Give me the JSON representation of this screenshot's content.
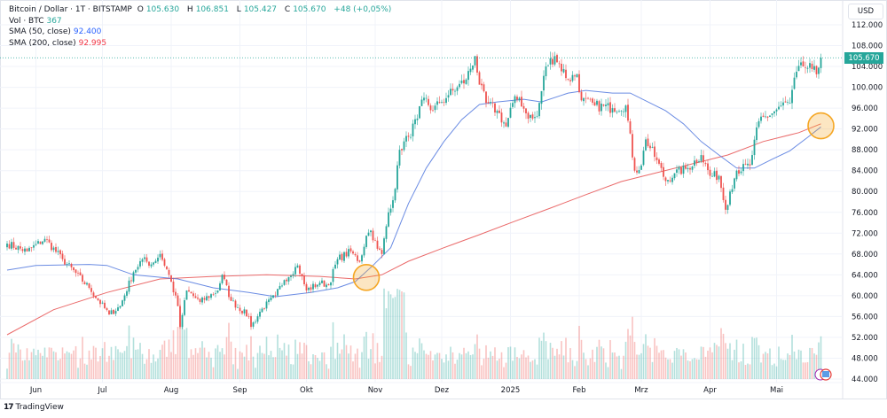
{
  "legend": {
    "symbol": "Bitcoin / Dollar · 1T · BITSTAMP",
    "open_label": "O",
    "open": "105.630",
    "high_label": "H",
    "high": "106.851",
    "low_label": "L",
    "low": "105.427",
    "close_label": "C",
    "close": "105.670",
    "change": "+48 (+0,05%)",
    "volume_label": "Vol · BTC",
    "volume": "367",
    "sma50_label": "SMA (50, close)",
    "sma50": "92.400",
    "sma200_label": "SMA (200, close)",
    "sma200": "92.995"
  },
  "currency": "USD",
  "current_price_badge": "105.670",
  "branding": "TradingView",
  "colors": {
    "up": "#26a69a",
    "down": "#ef5350",
    "sma50": "#5b7fe0",
    "sma200": "#e85a5a",
    "highlight": "#f5a623"
  },
  "chart_data": {
    "type": "candlestick",
    "title": "",
    "xlabel": "",
    "ylabel": "",
    "ylim": [
      44000,
      112000
    ],
    "y_ticks": [
      "112.000",
      "108.000",
      "104.000",
      "100.000",
      "96.000",
      "92.000",
      "88.000",
      "84.000",
      "80.000",
      "76.000",
      "72.000",
      "68.000",
      "64.000",
      "60.000",
      "56.000",
      "52.000",
      "48.000",
      "44.000"
    ],
    "x_ticks": [
      {
        "label": "Jun",
        "date": "2024-06-01"
      },
      {
        "label": "Jul",
        "date": "2024-07-01"
      },
      {
        "label": "Aug",
        "date": "2024-08-01"
      },
      {
        "label": "Sep",
        "date": "2024-09-01"
      },
      {
        "label": "Okt",
        "date": "2024-10-01"
      },
      {
        "label": "Nov",
        "date": "2024-11-01"
      },
      {
        "label": "Dez",
        "date": "2024-12-01"
      },
      {
        "label": "2025",
        "date": "2025-01-01"
      },
      {
        "label": "Feb",
        "date": "2025-02-01"
      },
      {
        "label": "Mrz",
        "date": "2025-03-01"
      },
      {
        "label": "Apr",
        "date": "2025-04-01"
      },
      {
        "label": "Mai",
        "date": "2025-05-01"
      }
    ],
    "grid": true,
    "close_path": [
      [
        "2024-05-19",
        70000
      ],
      [
        "2024-05-28",
        68500
      ],
      [
        "2024-06-05",
        70900
      ],
      [
        "2024-06-13",
        67000
      ],
      [
        "2024-06-25",
        61500
      ],
      [
        "2024-07-04",
        56400
      ],
      [
        "2024-07-09",
        58000
      ],
      [
        "2024-07-15",
        64500
      ],
      [
        "2024-07-19",
        67000
      ],
      [
        "2024-07-23",
        66000
      ],
      [
        "2024-07-27",
        68000
      ],
      [
        "2024-07-31",
        64000
      ],
      [
        "2024-08-04",
        58000
      ],
      [
        "2024-08-05",
        54000
      ],
      [
        "2024-08-08",
        61000
      ],
      [
        "2024-08-14",
        58800
      ],
      [
        "2024-08-22",
        61000
      ],
      [
        "2024-08-24",
        64000
      ],
      [
        "2024-08-28",
        59000
      ],
      [
        "2024-09-05",
        56000
      ],
      [
        "2024-09-06",
        54000
      ],
      [
        "2024-09-11",
        57500
      ],
      [
        "2024-09-17",
        60000
      ],
      [
        "2024-09-21",
        63000
      ],
      [
        "2024-09-27",
        65800
      ],
      [
        "2024-10-01",
        61000
      ],
      [
        "2024-10-07",
        62500
      ],
      [
        "2024-10-11",
        62000
      ],
      [
        "2024-10-15",
        67000
      ],
      [
        "2024-10-21",
        68500
      ],
      [
        "2024-10-25",
        66500
      ],
      [
        "2024-10-28",
        71500
      ],
      [
        "2024-10-30",
        72500
      ],
      [
        "2024-11-02",
        69000
      ],
      [
        "2024-11-04",
        68000
      ],
      [
        "2024-11-07",
        76000
      ],
      [
        "2024-11-10",
        80500
      ],
      [
        "2024-11-12",
        88000
      ],
      [
        "2024-11-16",
        90500
      ],
      [
        "2024-11-20",
        94000
      ],
      [
        "2024-11-23",
        98000
      ],
      [
        "2024-11-27",
        95500
      ],
      [
        "2024-11-30",
        97000
      ],
      [
        "2024-12-04",
        98500
      ],
      [
        "2024-12-08",
        100000
      ],
      [
        "2024-12-12",
        101500
      ],
      [
        "2024-12-16",
        106000
      ],
      [
        "2024-12-18",
        100500
      ],
      [
        "2024-12-21",
        97000
      ],
      [
        "2024-12-26",
        95500
      ],
      [
        "2024-12-30",
        92500
      ],
      [
        "2025-01-02",
        97000
      ],
      [
        "2025-01-05",
        98000
      ],
      [
        "2025-01-08",
        95000
      ],
      [
        "2025-01-11",
        94000
      ],
      [
        "2025-01-13",
        94500
      ],
      [
        "2025-01-17",
        104000
      ],
      [
        "2025-01-21",
        106000
      ],
      [
        "2025-01-27",
        101500
      ],
      [
        "2025-01-31",
        102500
      ],
      [
        "2025-02-02",
        97500
      ],
      [
        "2025-02-08",
        96500
      ],
      [
        "2025-02-16",
        96000
      ],
      [
        "2025-02-22",
        96500
      ],
      [
        "2025-02-26",
        84000
      ],
      [
        "2025-03-01",
        85000
      ],
      [
        "2025-03-03",
        90000
      ],
      [
        "2025-03-08",
        86000
      ],
      [
        "2025-03-12",
        82000
      ],
      [
        "2025-03-16",
        83500
      ],
      [
        "2025-03-22",
        84500
      ],
      [
        "2025-03-28",
        87000
      ],
      [
        "2025-04-01",
        83000
      ],
      [
        "2025-04-05",
        83000
      ],
      [
        "2025-04-08",
        76500
      ],
      [
        "2025-04-10",
        80000
      ],
      [
        "2025-04-13",
        84000
      ],
      [
        "2025-04-19",
        85000
      ],
      [
        "2025-04-23",
        93500
      ],
      [
        "2025-04-29",
        95000
      ],
      [
        "2025-05-03",
        96500
      ],
      [
        "2025-05-07",
        97000
      ],
      [
        "2025-05-10",
        103000
      ],
      [
        "2025-05-13",
        104000
      ],
      [
        "2025-05-17",
        103500
      ],
      [
        "2025-05-19",
        102500
      ],
      [
        "2025-05-21",
        105670
      ]
    ],
    "sma50": [
      [
        "2024-05-19",
        64900
      ],
      [
        "2024-06-01",
        65800
      ],
      [
        "2024-06-25",
        66000
      ],
      [
        "2024-07-03",
        65800
      ],
      [
        "2024-07-15",
        64000
      ],
      [
        "2024-08-04",
        63200
      ],
      [
        "2024-08-20",
        61500
      ],
      [
        "2024-09-05",
        60600
      ],
      [
        "2024-09-17",
        59800
      ],
      [
        "2024-10-03",
        60600
      ],
      [
        "2024-10-15",
        61500
      ],
      [
        "2024-10-23",
        62700
      ],
      [
        "2024-10-31",
        65800
      ],
      [
        "2024-11-08",
        69200
      ],
      [
        "2024-11-16",
        77700
      ],
      [
        "2024-11-24",
        84500
      ],
      [
        "2024-12-02",
        89600
      ],
      [
        "2024-12-10",
        93800
      ],
      [
        "2024-12-18",
        96700
      ],
      [
        "2024-12-26",
        97200
      ],
      [
        "2025-01-07",
        97700
      ],
      [
        "2025-01-15",
        97200
      ],
      [
        "2025-01-27",
        98900
      ],
      [
        "2025-02-04",
        99400
      ],
      [
        "2025-02-16",
        98900
      ],
      [
        "2025-02-24",
        98900
      ],
      [
        "2025-03-04",
        97200
      ],
      [
        "2025-03-12",
        95500
      ],
      [
        "2025-03-20",
        93000
      ],
      [
        "2025-03-28",
        89600
      ],
      [
        "2025-04-05",
        87000
      ],
      [
        "2025-04-13",
        84500
      ],
      [
        "2025-04-21",
        84500
      ],
      [
        "2025-04-29",
        86200
      ],
      [
        "2025-05-07",
        87800
      ],
      [
        "2025-05-15",
        90400
      ],
      [
        "2025-05-21",
        92400
      ]
    ],
    "sma200": [
      [
        "2024-05-19",
        52500
      ],
      [
        "2024-06-09",
        57300
      ],
      [
        "2024-07-03",
        60600
      ],
      [
        "2024-07-27",
        63200
      ],
      [
        "2024-08-20",
        63700
      ],
      [
        "2024-09-13",
        64000
      ],
      [
        "2024-10-07",
        63700
      ],
      [
        "2024-10-23",
        63200
      ],
      [
        "2024-11-04",
        64000
      ],
      [
        "2024-11-16",
        66600
      ],
      [
        "2024-12-02",
        69200
      ],
      [
        "2024-12-18",
        71700
      ],
      [
        "2025-01-03",
        74300
      ],
      [
        "2025-01-19",
        76800
      ],
      [
        "2025-02-04",
        79400
      ],
      [
        "2025-02-20",
        81900
      ],
      [
        "2025-03-08",
        83600
      ],
      [
        "2025-03-24",
        85300
      ],
      [
        "2025-04-09",
        87000
      ],
      [
        "2025-04-25",
        89600
      ],
      [
        "2025-05-11",
        91300
      ],
      [
        "2025-05-21",
        92995
      ]
    ],
    "annotations": [
      {
        "type": "circle",
        "date": "2024-10-28",
        "price": 63500,
        "meaning": "SMA crossover"
      },
      {
        "type": "circle",
        "date": "2025-05-21",
        "price": 92600,
        "meaning": "SMA crossover"
      }
    ],
    "last_price": 105670
  }
}
